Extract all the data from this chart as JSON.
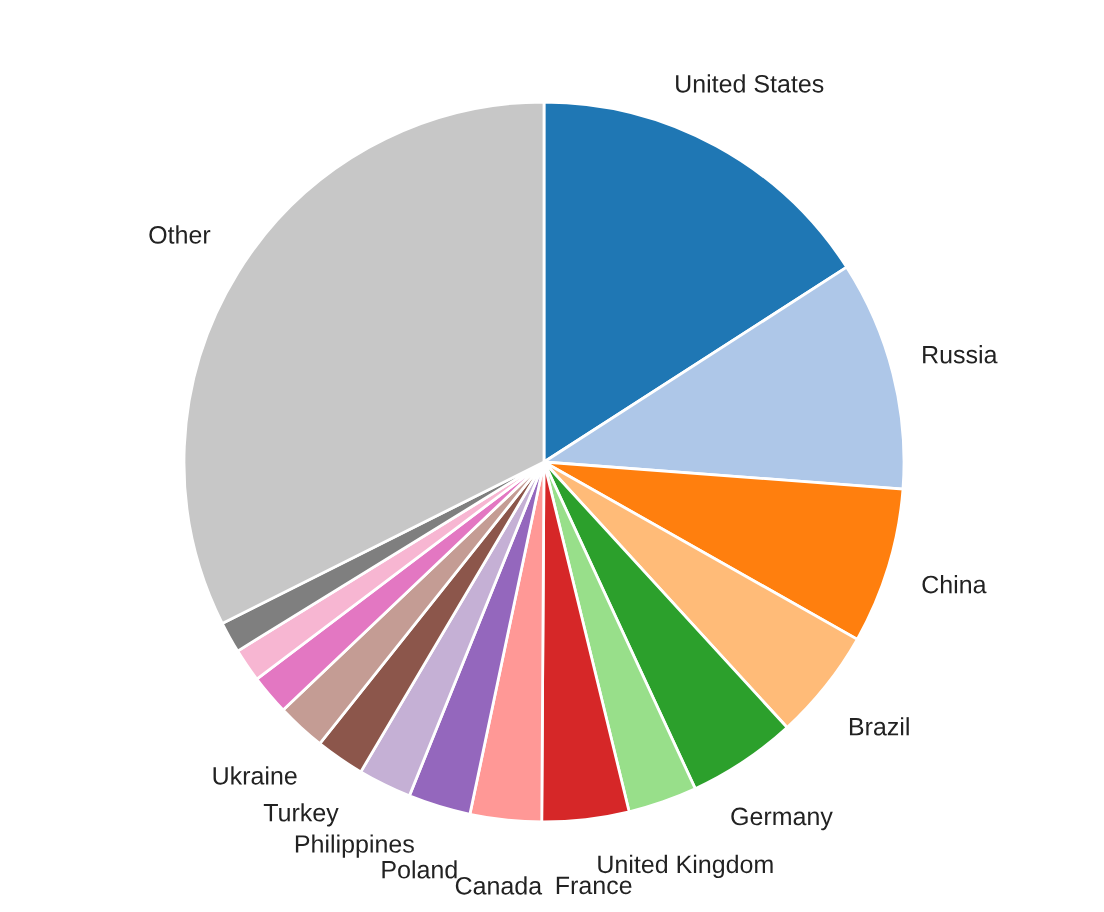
{
  "chart_data": {
    "type": "pie",
    "categories": [
      "United States",
      "Russia",
      "China",
      "Brazil",
      "Germany",
      "United Kingdom",
      "France",
      "Canada",
      "Poland",
      "Philippines",
      "Turkey",
      "Ukraine",
      null,
      null,
      null,
      "Other"
    ],
    "values": [
      15.9,
      10.3,
      7.0,
      5.0,
      4.9,
      3.1,
      3.9,
      3.2,
      2.8,
      2.4,
      2.2,
      2.2,
      1.8,
      1.5,
      1.4,
      32.4
    ],
    "colors": [
      "#1f77b4",
      "#aec7e8",
      "#ff7f0e",
      "#ffbb78",
      "#2ca02c",
      "#98df8a",
      "#d62728",
      "#ff9896",
      "#9467bd",
      "#c5b0d5",
      "#8c564b",
      "#c49c94",
      "#e377c2",
      "#f7b6d2",
      "#7f7f7f",
      "#c7c7c7"
    ]
  }
}
